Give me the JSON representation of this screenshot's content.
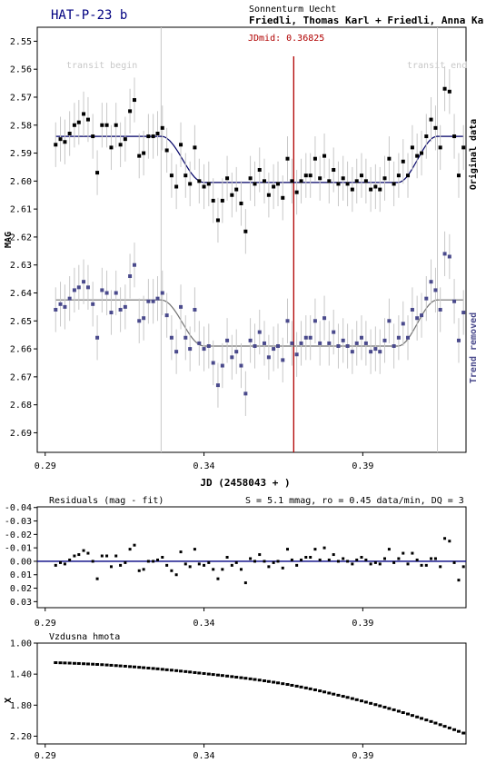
{
  "header": {
    "title": "HAT-P-23 b",
    "observatory": "Sonnenturm Uecht",
    "observers": "Friedli, Thomas Karl + Friedli, Anna Ka"
  },
  "colors": {
    "title": "#000080",
    "original": "#000000",
    "detrended": "#4a4a8c",
    "fit_line": "#000066",
    "fit_line_detrended": "#707070",
    "jdmid": "#b00000",
    "error_bars": "#c8c8c8",
    "transit_markers": "#c8c8c8",
    "residual_zero": "#000080"
  },
  "chart_data": [
    {
      "id": "lightcurve",
      "type": "scatter",
      "xlabel": "JD (2458043 + )",
      "ylabel": "MAG",
      "xlim": [
        0.2875,
        0.4225
      ],
      "ylim": [
        2.545,
        2.697
      ],
      "y_inverted": true,
      "x_ticks": [
        "0.29",
        "0.34",
        "0.39"
      ],
      "x_tick_values": [
        0.29,
        0.34,
        0.39
      ],
      "y_ticks": [
        "2.55",
        "2.56",
        "2.57",
        "2.58",
        "2.59",
        "2.60",
        "2.61",
        "2.62",
        "2.63",
        "2.64",
        "2.65",
        "2.66",
        "2.67",
        "2.68",
        "2.69"
      ],
      "y_tick_values": [
        2.55,
        2.56,
        2.57,
        2.58,
        2.59,
        2.6,
        2.61,
        2.62,
        2.63,
        2.64,
        2.65,
        2.66,
        2.67,
        2.68,
        2.69
      ],
      "transit_begin": {
        "x": 0.3265,
        "label": "transit begin"
      },
      "transit_end": {
        "x": 0.4135,
        "label": "transit end"
      },
      "jdmid": {
        "x": 0.36825,
        "label": "JDmid: 0.36825"
      },
      "side_labels": {
        "original": "Original data",
        "detrended": "Trend removed"
      },
      "model": {
        "baseline_original": 2.584,
        "baseline_detrended": 2.6425,
        "depth": 0.0165,
        "ingress_start": 0.3265,
        "ingress_end": 0.34,
        "egress_start": 0.401,
        "egress_end": 0.4135
      },
      "series": [
        {
          "name": "Original data",
          "error": 0.008,
          "x": [
            0.2933,
            0.2948,
            0.2962,
            0.2977,
            0.2992,
            0.3006,
            0.3021,
            0.3035,
            0.305,
            0.3064,
            0.3079,
            0.3094,
            0.3108,
            0.3123,
            0.3137,
            0.3152,
            0.3167,
            0.3181,
            0.3196,
            0.321,
            0.3225,
            0.324,
            0.3254,
            0.3269,
            0.3283,
            0.3298,
            0.3313,
            0.3327,
            0.3342,
            0.3356,
            0.3371,
            0.3385,
            0.34,
            0.3415,
            0.3429,
            0.3444,
            0.3458,
            0.3473,
            0.3488,
            0.3502,
            0.3517,
            0.3531,
            0.3546,
            0.356,
            0.3575,
            0.359,
            0.3604,
            0.3619,
            0.3633,
            0.3648,
            0.3663,
            0.3677,
            0.3692,
            0.3706,
            0.3721,
            0.3735,
            0.375,
            0.3765,
            0.3779,
            0.3794,
            0.3808,
            0.3823,
            0.3838,
            0.3852,
            0.3867,
            0.3881,
            0.3896,
            0.391,
            0.3925,
            0.394,
            0.3954,
            0.3969,
            0.3983,
            0.3998,
            0.4013,
            0.4027,
            0.4042,
            0.4056,
            0.4071,
            0.4085,
            0.41,
            0.4115,
            0.4129,
            0.4144,
            0.4158,
            0.4173,
            0.4188,
            0.4202,
            0.4217
          ],
          "y": [
            2.587,
            2.585,
            2.586,
            2.583,
            2.58,
            2.579,
            2.576,
            2.578,
            2.584,
            2.597,
            2.58,
            2.58,
            2.588,
            2.58,
            2.587,
            2.585,
            2.575,
            2.571,
            2.591,
            2.59,
            2.584,
            2.584,
            2.583,
            2.581,
            2.589,
            2.598,
            2.602,
            2.587,
            2.598,
            2.601,
            2.588,
            2.6,
            2.602,
            2.601,
            2.607,
            2.614,
            2.607,
            2.599,
            2.605,
            2.603,
            2.608,
            2.618,
            2.599,
            2.601,
            2.596,
            2.6,
            2.605,
            2.602,
            2.601,
            2.606,
            2.592,
            2.6,
            2.604,
            2.6,
            2.598,
            2.598,
            2.592,
            2.599,
            2.591,
            2.6,
            2.596,
            2.601,
            2.599,
            2.601,
            2.603,
            2.6,
            2.598,
            2.6,
            2.603,
            2.602,
            2.603,
            2.599,
            2.592,
            2.601,
            2.598,
            2.593,
            2.598,
            2.588,
            2.591,
            2.59,
            2.584,
            2.578,
            2.581,
            2.588,
            2.567,
            2.568,
            2.584,
            2.598,
            2.588
          ]
        },
        {
          "name": "Trend removed",
          "error": 0.008,
          "x": [
            0.2933,
            0.2948,
            0.2962,
            0.2977,
            0.2992,
            0.3006,
            0.3021,
            0.3035,
            0.305,
            0.3064,
            0.3079,
            0.3094,
            0.3108,
            0.3123,
            0.3137,
            0.3152,
            0.3167,
            0.3181,
            0.3196,
            0.321,
            0.3225,
            0.324,
            0.3254,
            0.3269,
            0.3283,
            0.3298,
            0.3313,
            0.3327,
            0.3342,
            0.3356,
            0.3371,
            0.3385,
            0.34,
            0.3415,
            0.3429,
            0.3444,
            0.3458,
            0.3473,
            0.3488,
            0.3502,
            0.3517,
            0.3531,
            0.3546,
            0.356,
            0.3575,
            0.359,
            0.3604,
            0.3619,
            0.3633,
            0.3648,
            0.3663,
            0.3677,
            0.3692,
            0.3706,
            0.3721,
            0.3735,
            0.375,
            0.3765,
            0.3779,
            0.3794,
            0.3808,
            0.3823,
            0.3838,
            0.3852,
            0.3867,
            0.3881,
            0.3896,
            0.391,
            0.3925,
            0.394,
            0.3954,
            0.3969,
            0.3983,
            0.3998,
            0.4013,
            0.4027,
            0.4042,
            0.4056,
            0.4071,
            0.4085,
            0.41,
            0.4115,
            0.4129,
            0.4144,
            0.4158,
            0.4173,
            0.4188,
            0.4202,
            0.4217
          ],
          "y": [
            2.646,
            2.644,
            2.645,
            2.642,
            2.639,
            2.638,
            2.636,
            2.638,
            2.644,
            2.656,
            2.639,
            2.64,
            2.647,
            2.64,
            2.646,
            2.645,
            2.634,
            2.63,
            2.65,
            2.649,
            2.643,
            2.643,
            2.642,
            2.64,
            2.648,
            2.656,
            2.661,
            2.645,
            2.656,
            2.66,
            2.646,
            2.658,
            2.66,
            2.659,
            2.665,
            2.673,
            2.666,
            2.657,
            2.663,
            2.661,
            2.666,
            2.676,
            2.657,
            2.659,
            2.654,
            2.658,
            2.663,
            2.66,
            2.659,
            2.664,
            2.65,
            2.658,
            2.662,
            2.658,
            2.656,
            2.656,
            2.65,
            2.658,
            2.649,
            2.658,
            2.654,
            2.659,
            2.657,
            2.659,
            2.661,
            2.658,
            2.656,
            2.658,
            2.661,
            2.66,
            2.661,
            2.657,
            2.65,
            2.659,
            2.656,
            2.651,
            2.656,
            2.646,
            2.649,
            2.648,
            2.642,
            2.636,
            2.639,
            2.646,
            2.626,
            2.627,
            2.643,
            2.657,
            2.647
          ]
        }
      ]
    },
    {
      "id": "residuals",
      "type": "scatter",
      "title": "Residuals (mag - fit)",
      "stats": "S = 5.1 mmag, ro = 0.45 data/min, DQ = 3",
      "xlim": [
        0.2875,
        0.4225
      ],
      "ylim": [
        -0.0405,
        0.0345
      ],
      "y_inverted": true,
      "x_ticks": [
        "0.29",
        "0.34",
        "0.39"
      ],
      "x_tick_values": [
        0.29,
        0.34,
        0.39
      ],
      "y_ticks": [
        "-0.04",
        "-0.03",
        "-0.02",
        "-0.01",
        "0.00",
        "0.01",
        "0.02",
        "0.03"
      ],
      "y_tick_values": [
        -0.04,
        -0.03,
        -0.02,
        -0.01,
        0.0,
        0.01,
        0.02,
        0.03
      ],
      "x": [
        0.2933,
        0.2948,
        0.2962,
        0.2977,
        0.2992,
        0.3006,
        0.3021,
        0.3035,
        0.305,
        0.3064,
        0.3079,
        0.3094,
        0.3108,
        0.3123,
        0.3137,
        0.3152,
        0.3167,
        0.3181,
        0.3196,
        0.321,
        0.3225,
        0.324,
        0.3254,
        0.3269,
        0.3283,
        0.3298,
        0.3313,
        0.3327,
        0.3342,
        0.3356,
        0.3371,
        0.3385,
        0.34,
        0.3415,
        0.3429,
        0.3444,
        0.3458,
        0.3473,
        0.3488,
        0.3502,
        0.3517,
        0.3531,
        0.3546,
        0.356,
        0.3575,
        0.359,
        0.3604,
        0.3619,
        0.3633,
        0.3648,
        0.3663,
        0.3677,
        0.3692,
        0.3706,
        0.3721,
        0.3735,
        0.375,
        0.3765,
        0.3779,
        0.3794,
        0.3808,
        0.3823,
        0.3838,
        0.3852,
        0.3867,
        0.3881,
        0.3896,
        0.391,
        0.3925,
        0.394,
        0.3954,
        0.3969,
        0.3983,
        0.3998,
        0.4013,
        0.4027,
        0.4042,
        0.4056,
        0.4071,
        0.4085,
        0.41,
        0.4115,
        0.4129,
        0.4144,
        0.4158,
        0.4173,
        0.4188,
        0.4202,
        0.4217
      ],
      "y": [
        0.003,
        0.001,
        0.002,
        -0.001,
        -0.004,
        -0.005,
        -0.008,
        -0.006,
        0.0,
        0.013,
        -0.004,
        -0.004,
        0.004,
        -0.004,
        0.003,
        0.001,
        -0.009,
        -0.012,
        0.007,
        0.006,
        0.0,
        0.0,
        -0.001,
        -0.003,
        0.003,
        0.007,
        0.01,
        -0.007,
        0.002,
        0.004,
        -0.009,
        0.002,
        0.003,
        0.001,
        0.006,
        0.013,
        0.006,
        -0.003,
        0.003,
        0.001,
        0.006,
        0.016,
        -0.002,
        0.0,
        -0.005,
        0.0,
        0.004,
        0.001,
        0.0,
        0.005,
        -0.009,
        -0.001,
        0.003,
        -0.001,
        -0.003,
        -0.003,
        -0.009,
        -0.001,
        -0.01,
        -0.001,
        -0.005,
        0.0,
        -0.002,
        0.0,
        0.002,
        -0.001,
        -0.003,
        -0.001,
        0.002,
        0.001,
        0.002,
        -0.002,
        -0.009,
        0.001,
        -0.002,
        -0.006,
        0.002,
        -0.006,
        -0.001,
        0.003,
        0.003,
        -0.002,
        -0.002,
        0.004,
        -0.017,
        -0.015,
        0.001,
        0.014,
        0.004
      ]
    },
    {
      "id": "airmass",
      "type": "scatter",
      "title": "Vzdusna hmota",
      "ylabel": "X",
      "xlim": [
        0.2875,
        0.4225
      ],
      "ylim": [
        1.0,
        2.3
      ],
      "y_inverted": true,
      "x_ticks": [
        "0.29",
        "0.34",
        "0.39"
      ],
      "x_tick_values": [
        0.29,
        0.34,
        0.39
      ],
      "y_ticks": [
        "1.00",
        "1.40",
        "1.80",
        "2.20"
      ],
      "y_tick_values": [
        1.0,
        1.4,
        1.8,
        2.2
      ],
      "x": [
        0.2933,
        0.2948,
        0.2962,
        0.2977,
        0.2992,
        0.3006,
        0.3021,
        0.3035,
        0.305,
        0.3064,
        0.3079,
        0.3094,
        0.3108,
        0.3123,
        0.3137,
        0.3152,
        0.3167,
        0.3181,
        0.3196,
        0.321,
        0.3225,
        0.324,
        0.3254,
        0.3269,
        0.3283,
        0.3298,
        0.3313,
        0.3327,
        0.3342,
        0.3356,
        0.3371,
        0.3385,
        0.34,
        0.3415,
        0.3429,
        0.3444,
        0.3458,
        0.3473,
        0.3488,
        0.3502,
        0.3517,
        0.3531,
        0.3546,
        0.356,
        0.3575,
        0.359,
        0.3604,
        0.3619,
        0.3633,
        0.3648,
        0.3663,
        0.3677,
        0.3692,
        0.3706,
        0.3721,
        0.3735,
        0.375,
        0.3765,
        0.3779,
        0.3794,
        0.3808,
        0.3823,
        0.3838,
        0.3852,
        0.3867,
        0.3881,
        0.3896,
        0.391,
        0.3925,
        0.394,
        0.3954,
        0.3969,
        0.3983,
        0.3998,
        0.4013,
        0.4027,
        0.4042,
        0.4056,
        0.4071,
        0.4085,
        0.41,
        0.4115,
        0.4129,
        0.4144,
        0.4158,
        0.4173,
        0.4188,
        0.4202,
        0.4217
      ],
      "y": [
        1.252,
        1.254,
        1.256,
        1.258,
        1.261,
        1.263,
        1.266,
        1.269,
        1.272,
        1.275,
        1.278,
        1.282,
        1.286,
        1.29,
        1.294,
        1.298,
        1.303,
        1.307,
        1.312,
        1.317,
        1.322,
        1.327,
        1.332,
        1.338,
        1.344,
        1.349,
        1.355,
        1.361,
        1.367,
        1.373,
        1.38,
        1.386,
        1.392,
        1.399,
        1.405,
        1.412,
        1.418,
        1.425,
        1.432,
        1.439,
        1.446,
        1.453,
        1.461,
        1.469,
        1.477,
        1.486,
        1.495,
        1.504,
        1.513,
        1.523,
        1.533,
        1.544,
        1.555,
        1.566,
        1.578,
        1.59,
        1.603,
        1.616,
        1.63,
        1.644,
        1.658,
        1.672,
        1.686,
        1.7,
        1.715,
        1.73,
        1.745,
        1.761,
        1.777,
        1.793,
        1.809,
        1.826,
        1.843,
        1.86,
        1.878,
        1.896,
        1.914,
        1.933,
        1.952,
        1.971,
        1.991,
        2.011,
        2.031,
        2.052,
        2.073,
        2.094,
        2.116,
        2.138,
        2.16
      ]
    }
  ]
}
